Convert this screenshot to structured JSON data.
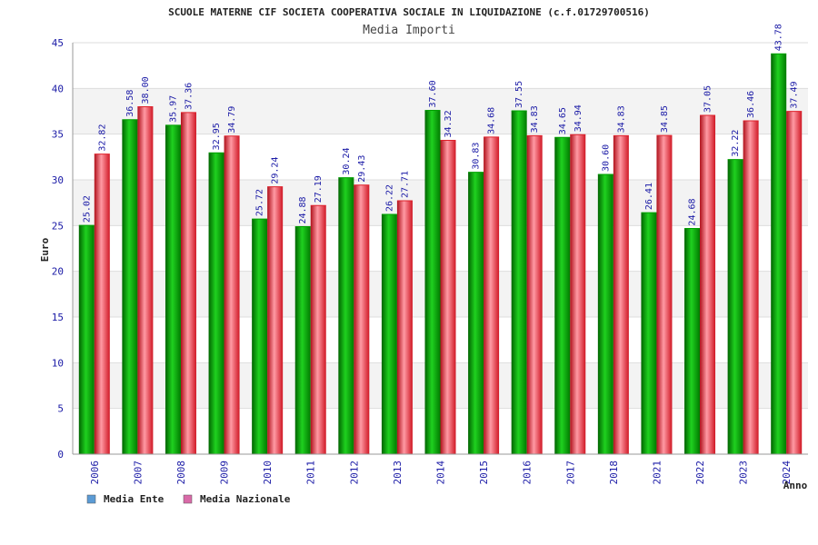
{
  "chart_data": {
    "type": "bar",
    "title": "SCUOLE MATERNE CIF SOCIETA COOPERATIVA SOCIALE IN LIQUIDAZIONE (c.f.01729700516)",
    "subtitle": "Media Importi",
    "xlabel": "Anno",
    "ylabel": "Euro",
    "ylim": [
      0,
      45
    ],
    "yticks": [
      0,
      5,
      10,
      15,
      20,
      25,
      30,
      35,
      40,
      45
    ],
    "grid": true,
    "legend_position": "bottom-left",
    "categories": [
      "2006",
      "2007",
      "2008",
      "2009",
      "2010",
      "2011",
      "2012",
      "2013",
      "2014",
      "2015",
      "2016",
      "2017",
      "2018",
      "2021",
      "2022",
      "2023",
      "2024"
    ],
    "series": [
      {
        "name": "Media Ente",
        "color": "#00a000",
        "legend_color": "#5b9bd5",
        "values": [
          25.02,
          36.58,
          35.97,
          32.95,
          25.72,
          24.88,
          30.24,
          26.22,
          37.6,
          30.83,
          37.55,
          34.65,
          30.6,
          26.41,
          24.68,
          32.22,
          43.78
        ],
        "labels": [
          "25.02",
          "36.58",
          "35.97",
          "32.95",
          "25.72",
          "24.88",
          "30.24",
          "26.22",
          "37.60",
          "30.83",
          "37.55",
          "34.65",
          "30.60",
          "26.41",
          "24.68",
          "32.22",
          "43.78"
        ]
      },
      {
        "name": "Media Nazionale",
        "color": "#e0202a",
        "legend_color": "#d96aa8",
        "values": [
          32.82,
          38.0,
          37.36,
          34.79,
          29.24,
          27.19,
          29.43,
          27.71,
          34.32,
          34.68,
          34.83,
          34.94,
          34.83,
          34.85,
          37.05,
          36.46,
          37.49
        ],
        "labels": [
          "32.82",
          "38.00",
          "37.36",
          "34.79",
          "29.24",
          "27.19",
          "29.43",
          "27.71",
          "34.32",
          "34.68",
          "34.83",
          "34.94",
          "34.83",
          "34.85",
          "37.05",
          "36.46",
          "37.49"
        ]
      }
    ]
  }
}
